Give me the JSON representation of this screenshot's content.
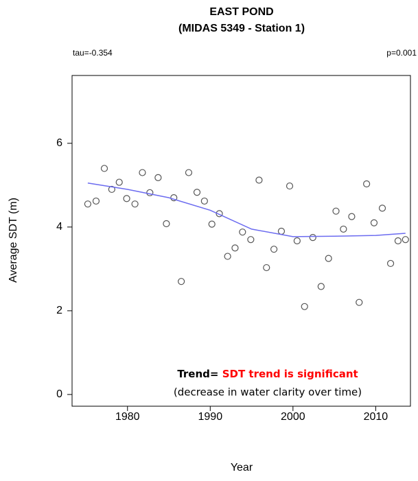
{
  "chart_data": {
    "type": "scatter",
    "title": "EAST POND",
    "subtitle": "(MIDAS 5349 - Station 1)",
    "stats_left": "tau=-0.354",
    "stats_right": "p=0.001",
    "x_label": "Year",
    "y_label": "Average SDT (m)",
    "annotation_prefix": "Trend=",
    "annotation_highlight": "SDT trend is significant",
    "annotation_note": "(decrease in water clarity over time)",
    "highlight_color": "#ff0000",
    "xlim": [
      1973.3,
      2014.2
    ],
    "ylim": [
      -0.28,
      7.62
    ],
    "xticks": [
      1980,
      1990,
      2000,
      2010
    ],
    "yticks": [
      0,
      2,
      4,
      6
    ],
    "series": [
      {
        "kind": "points",
        "color": "#555555",
        "x": [
          1975.2,
          1976.2,
          1977.2,
          1978.1,
          1979.0,
          1979.9,
          1980.9,
          1981.8,
          1982.7,
          1983.7,
          1984.7,
          1985.6,
          1986.5,
          1987.4,
          1988.4,
          1989.3,
          1990.2,
          1991.1,
          1992.1,
          1993.0,
          1993.9,
          1994.9,
          1995.9,
          1996.8,
          1997.7,
          1998.6,
          1999.6,
          2000.5,
          2001.4,
          2002.4,
          2003.4,
          2004.3,
          2005.2,
          2006.1,
          2007.1,
          2008.0,
          2008.9,
          2009.8,
          2010.8,
          2011.8,
          2012.7,
          2013.6
        ],
        "values": [
          4.55,
          4.62,
          5.4,
          4.9,
          5.07,
          4.68,
          4.55,
          5.3,
          4.82,
          5.18,
          4.08,
          4.7,
          2.7,
          5.3,
          4.83,
          4.62,
          4.07,
          4.32,
          3.3,
          3.5,
          3.88,
          3.7,
          5.12,
          3.03,
          3.47,
          3.9,
          4.98,
          3.67,
          2.1,
          3.75,
          2.58,
          3.25,
          4.38,
          3.95,
          4.25,
          2.2,
          5.03,
          4.1,
          4.45,
          3.13,
          3.67,
          3.7
        ]
      },
      {
        "kind": "line",
        "color": "#6b6bf0",
        "x": [
          1975.2,
          1980,
          1985,
          1990,
          1995,
          2000,
          2005,
          2010,
          2013.6
        ],
        "values": [
          5.05,
          4.9,
          4.7,
          4.4,
          3.95,
          3.77,
          3.78,
          3.8,
          3.85
        ]
      }
    ]
  }
}
